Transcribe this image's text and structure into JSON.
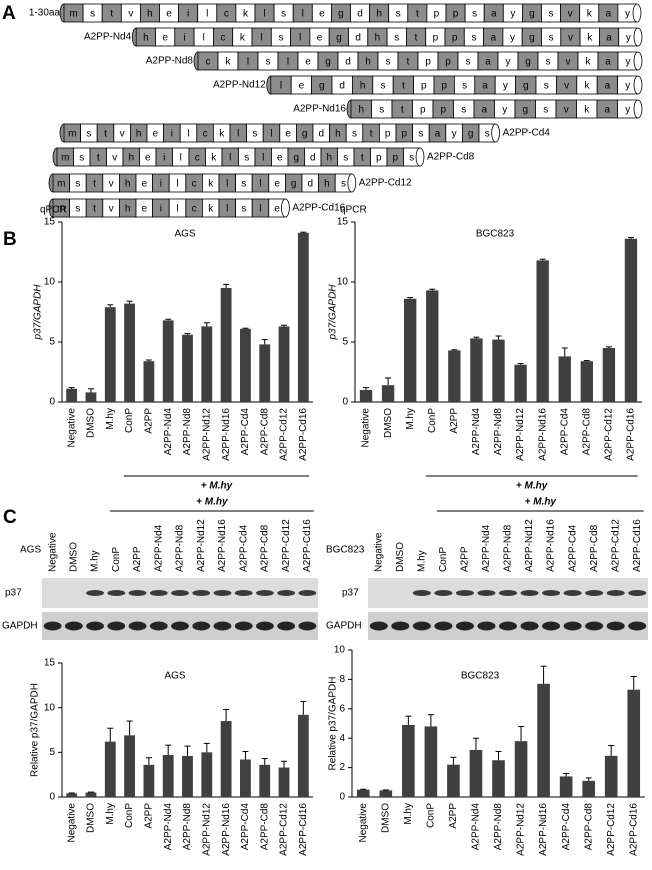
{
  "panel_a": {
    "label": "A",
    "rows": [
      {
        "name": "1-30aa",
        "residues": [
          "m",
          "s",
          "t",
          "v",
          "h",
          "e",
          "i",
          "l",
          "c",
          "k",
          "l",
          "s",
          "l",
          "e",
          "g",
          "d",
          "h",
          "s",
          "t",
          "p",
          "p",
          "s",
          "a",
          "y",
          "g",
          "s",
          "v",
          "k",
          "a",
          "y"
        ]
      },
      {
        "name": "A2PP-Nd4",
        "residues": [
          "h",
          "e",
          "i",
          "l",
          "c",
          "k",
          "l",
          "s",
          "l",
          "e",
          "g",
          "d",
          "h",
          "s",
          "t",
          "p",
          "p",
          "s",
          "a",
          "y",
          "g",
          "s",
          "v",
          "k",
          "a",
          "y"
        ]
      },
      {
        "name": "A2PP-Nd8",
        "residues": [
          "c",
          "k",
          "l",
          "s",
          "l",
          "e",
          "g",
          "d",
          "h",
          "s",
          "t",
          "p",
          "p",
          "s",
          "a",
          "y",
          "g",
          "s",
          "v",
          "k",
          "a",
          "y"
        ]
      },
      {
        "name": "A2PP-Nd12",
        "residues": [
          "l",
          "e",
          "g",
          "d",
          "h",
          "s",
          "t",
          "p",
          "p",
          "s",
          "a",
          "y",
          "g",
          "s",
          "v",
          "k",
          "a",
          "y"
        ]
      },
      {
        "name": "A2PP-Nd16",
        "residues": [
          "h",
          "s",
          "t",
          "p",
          "p",
          "s",
          "a",
          "y",
          "g",
          "s",
          "v",
          "k",
          "a",
          "y"
        ]
      },
      {
        "name": "A2PP-Cd4",
        "residues": [
          "m",
          "s",
          "t",
          "v",
          "h",
          "e",
          "i",
          "l",
          "c",
          "k",
          "l",
          "s",
          "l",
          "e",
          "g",
          "d",
          "h",
          "s",
          "t",
          "p",
          "p",
          "s",
          "a",
          "y",
          "g",
          "s"
        ]
      },
      {
        "name": "A2PP-Cd8",
        "residues": [
          "m",
          "s",
          "t",
          "v",
          "h",
          "e",
          "i",
          "l",
          "c",
          "k",
          "l",
          "s",
          "l",
          "e",
          "g",
          "d",
          "h",
          "s",
          "t",
          "p",
          "p",
          "s"
        ]
      },
      {
        "name": "A2PP-Cd12",
        "residues": [
          "m",
          "s",
          "t",
          "v",
          "h",
          "e",
          "i",
          "l",
          "c",
          "k",
          "l",
          "s",
          "l",
          "e",
          "g",
          "d",
          "h",
          "s"
        ]
      },
      {
        "name": "A2PP-Cd16",
        "residues": [
          "m",
          "s",
          "t",
          "v",
          "h",
          "e",
          "i",
          "l",
          "c",
          "k",
          "l",
          "s",
          "l",
          "e"
        ]
      }
    ]
  },
  "panel_b": {
    "label": "B"
  },
  "panel_c": {
    "label": "C",
    "blots": [
      {
        "cell_line": "AGS",
        "treatment": "+ M.hy",
        "lanes": [
          "Negative",
          "DMSO",
          "M.hy",
          "ConP",
          "A2PP",
          "A2PP-Nd4",
          "A2PP-Nd8",
          "A2PP-Nd12",
          "A2PP-Nd16",
          "A2PP-Cd4",
          "A2PP-Cd8",
          "A2PP-Cd12",
          "A2PP-Cd16"
        ],
        "rows": [
          "p37",
          "GAPDH"
        ]
      },
      {
        "cell_line": "BGC823",
        "treatment": "+ M.hy",
        "lanes": [
          "Negative",
          "DMSO",
          "M.hy",
          "ConP",
          "A2PP",
          "A2PP-Nd4",
          "A2PP-Nd8",
          "A2PP-Nd12",
          "A2PP-Nd16",
          "A2PP-Cd4",
          "A2PP-Cd8",
          "A2PP-Cd12",
          "A2PP-Cd16"
        ],
        "rows": [
          "p37",
          "GAPDH"
        ]
      }
    ]
  },
  "chart_data": [
    {
      "type": "bar",
      "annotation": "qPCR",
      "title": "AGS",
      "ylabel": "p37/GAPDH",
      "treatment": "+ M.hy",
      "color": "#404040",
      "categories": [
        "Negative",
        "DMSO",
        "M.hy",
        "ConP",
        "A2PP",
        "A2PP-Nd4",
        "A2PP-Nd8",
        "A2PP-Nd12",
        "A2PP-Nd16",
        "A2PP-Cd4",
        "A2PP-Cd8",
        "A2PP-Cd12",
        "A2PP-Cd16"
      ],
      "values": [
        1.1,
        0.8,
        7.9,
        8.2,
        3.4,
        6.8,
        5.6,
        6.3,
        9.5,
        6.1,
        4.8,
        6.3,
        14.1
      ],
      "errors": [
        0.1,
        0.3,
        0.2,
        0.2,
        0.1,
        0.1,
        0.1,
        0.3,
        0.3,
        0.05,
        0.4,
        0.1,
        0.05
      ],
      "ylim": [
        0,
        15
      ],
      "yticks": [
        0,
        5,
        10,
        15
      ]
    },
    {
      "type": "bar",
      "annotation": "qPCR",
      "title": "BGC823",
      "ylabel": "p37/GAPDH",
      "treatment": "+ M.hy",
      "color": "#404040",
      "categories": [
        "Negative",
        "DMSO",
        "M.hy",
        "ConP",
        "A2PP",
        "A2PP-Nd4",
        "A2PP-Nd8",
        "A2PP-Nd12",
        "A2PP-Nd16",
        "A2PP-Cd4",
        "A2PP-Cd8",
        "A2PP-Cd12",
        "A2PP-Cd16"
      ],
      "values": [
        1.0,
        1.4,
        8.6,
        9.3,
        4.3,
        5.3,
        5.2,
        3.1,
        11.8,
        3.8,
        3.4,
        4.5,
        13.6
      ],
      "errors": [
        0.2,
        0.6,
        0.1,
        0.1,
        0.05,
        0.1,
        0.3,
        0.1,
        0.1,
        0.7,
        0.05,
        0.1,
        0.1
      ],
      "ylim": [
        0,
        15
      ],
      "yticks": [
        0,
        5,
        10,
        15
      ]
    },
    {
      "type": "bar",
      "title": "AGS",
      "ylabel": "Relative p37/GAPDH",
      "color": "#404040",
      "categories": [
        "Negative",
        "DMSO",
        "M.hy",
        "ConP",
        "A2PP",
        "A2PP-Nd4",
        "A2PP-Nd8",
        "A2PP-Nd12",
        "A2PP-Nd16",
        "A2PP-Cd4",
        "A2PP-Cd8",
        "A2PP-Cd12",
        "A2PP-Cd16"
      ],
      "values": [
        0.4,
        0.5,
        6.2,
        6.9,
        3.6,
        4.7,
        4.6,
        5.0,
        8.5,
        4.2,
        3.6,
        3.3,
        9.2
      ],
      "errors": [
        0.05,
        0.05,
        1.5,
        1.6,
        0.8,
        1.1,
        1.1,
        1.0,
        1.3,
        0.9,
        0.7,
        0.7,
        1.5
      ],
      "ylim": [
        0,
        15
      ],
      "yticks": [
        0,
        5,
        10,
        15
      ]
    },
    {
      "type": "bar",
      "title": "BGC823",
      "ylabel": "Relative p37/GAPDH",
      "color": "#404040",
      "categories": [
        "Negative",
        "DMSO",
        "M.hy",
        "ConP",
        "A2PP",
        "A2PP-Nd4",
        "A2PP-Nd8",
        "A2PP-Nd12",
        "A2PP-Nd16",
        "A2PP-Cd4",
        "A2PP-Cd8",
        "A2PP-Cd12",
        "A2PP-Cd16"
      ],
      "values": [
        0.5,
        0.45,
        4.9,
        4.8,
        2.2,
        3.2,
        2.5,
        3.8,
        7.7,
        1.4,
        1.1,
        2.8,
        7.3
      ],
      "errors": [
        0.03,
        0.03,
        0.6,
        0.8,
        0.5,
        0.8,
        0.6,
        1.0,
        1.2,
        0.2,
        0.2,
        0.7,
        0.9
      ],
      "ylim": [
        0,
        10
      ],
      "yticks": [
        0,
        2,
        4,
        6,
        8,
        10
      ]
    }
  ]
}
